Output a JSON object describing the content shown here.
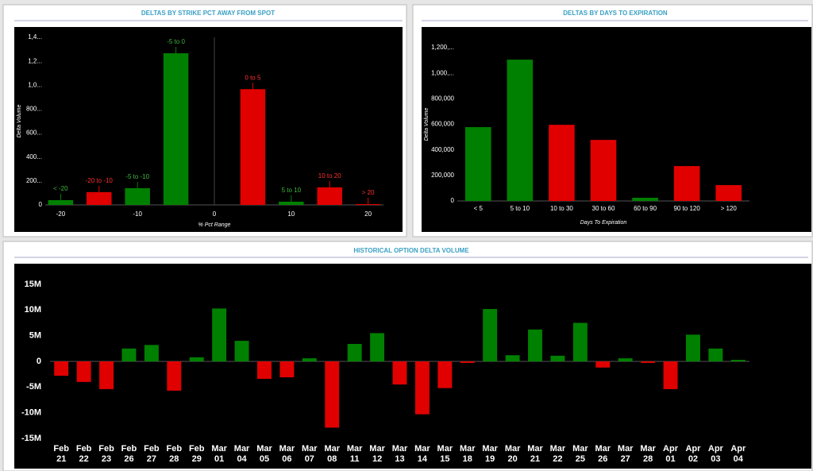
{
  "chart_data": [
    {
      "type": "bar",
      "title": "DELTAS BY STRIKE PCT AWAY FROM SPOT",
      "x": [
        -20,
        -15,
        -10,
        -5,
        5,
        10,
        15,
        20
      ],
      "bar_labels": [
        "< -20",
        "-20 to -10",
        "-5 to -10",
        "-5 to 0",
        "0 to 5",
        "5 to 10",
        "10 to 20",
        "> 20"
      ],
      "values": [
        40000,
        107000,
        140000,
        1267000,
        967000,
        27000,
        147000,
        7000
      ],
      "colors": [
        "#008000",
        "#e00000",
        "#008000",
        "#008000",
        "#e00000",
        "#008000",
        "#e00000",
        "#e00000"
      ],
      "xlim": [
        -22,
        22
      ],
      "xticks": [
        -20,
        -10,
        0,
        10,
        20
      ],
      "ylim": [
        0,
        1400000
      ],
      "yticks": [
        0,
        {
          "value": 200000,
          "label": "200..."
        },
        {
          "value": 400000,
          "label": "400..."
        },
        {
          "value": 600000,
          "label": "600..."
        },
        {
          "value": 800000,
          "label": "800..."
        },
        {
          "value": 1000000,
          "label": "1,0..."
        },
        {
          "value": 1200000,
          "label": "1,2..."
        },
        {
          "value": 1400000,
          "label": "1,4..."
        }
      ],
      "xlabel": "% Pct Range",
      "ylabel": "Delta Volume"
    },
    {
      "type": "bar",
      "title": "DELTAS BY DAYS TO EXPIRATION",
      "categories": [
        "< 5",
        "5 to 10",
        "10 to 30",
        "30 to 60",
        "60 to 90",
        "90 to 120",
        "> 120"
      ],
      "values": [
        578000,
        1106000,
        596000,
        478000,
        25000,
        273000,
        124000
      ],
      "colors": [
        "#008000",
        "#008000",
        "#e00000",
        "#e00000",
        "#008000",
        "#e00000",
        "#e00000"
      ],
      "ylim": [
        0,
        1200000
      ],
      "yticks": [
        0,
        {
          "value": 200000,
          "label": "200,000"
        },
        {
          "value": 400000,
          "label": "400,000"
        },
        {
          "value": 600000,
          "label": "600,000"
        },
        {
          "value": 800000,
          "label": "800,000"
        },
        {
          "value": 1000000,
          "label": "1,000,..."
        },
        {
          "value": 1200000,
          "label": "1,200,..."
        }
      ],
      "xlabel": "Days To Expiration",
      "ylabel": "Delta Volume"
    },
    {
      "type": "bar",
      "title": "HISTORICAL OPTION DELTA VOLUME",
      "categories": [
        [
          "Feb",
          "21"
        ],
        [
          "Feb",
          "22"
        ],
        [
          "Feb",
          "23"
        ],
        [
          "Feb",
          "26"
        ],
        [
          "Feb",
          "27"
        ],
        [
          "Feb",
          "28"
        ],
        [
          "Feb",
          "29"
        ],
        [
          "Mar",
          "01"
        ],
        [
          "Mar",
          "04"
        ],
        [
          "Mar",
          "05"
        ],
        [
          "Mar",
          "06"
        ],
        [
          "Mar",
          "07"
        ],
        [
          "Mar",
          "08"
        ],
        [
          "Mar",
          "11"
        ],
        [
          "Mar",
          "12"
        ],
        [
          "Mar",
          "13"
        ],
        [
          "Mar",
          "14"
        ],
        [
          "Mar",
          "15"
        ],
        [
          "Mar",
          "18"
        ],
        [
          "Mar",
          "19"
        ],
        [
          "Mar",
          "20"
        ],
        [
          "Mar",
          "21"
        ],
        [
          "Mar",
          "22"
        ],
        [
          "Mar",
          "25"
        ],
        [
          "Mar",
          "26"
        ],
        [
          "Mar",
          "27"
        ],
        [
          "Mar",
          "28"
        ],
        [
          "Apr",
          "01"
        ],
        [
          "Apr",
          "02"
        ],
        [
          "Apr",
          "03"
        ],
        [
          "Apr",
          "04"
        ]
      ],
      "values": [
        -2800000,
        -4000000,
        -5400000,
        2500000,
        3200000,
        -5700000,
        800000,
        10300000,
        4000000,
        -3400000,
        -3100000,
        600000,
        -12900000,
        3400000,
        5500000,
        -4500000,
        -10300000,
        -5200000,
        -300000,
        10200000,
        1200000,
        6200000,
        1100000,
        7500000,
        -1200000,
        600000,
        -300000,
        -5400000,
        5200000,
        2500000,
        300000
      ],
      "positive_color": "#008000",
      "negative_color": "#e00000",
      "ylim": [
        -15000000,
        15000000
      ],
      "yticks": [
        {
          "value": -15000000,
          "label": "-15M"
        },
        {
          "value": -10000000,
          "label": "-10M"
        },
        {
          "value": -5000000,
          "label": "-5M"
        },
        0,
        {
          "value": 5000000,
          "label": "5M"
        },
        {
          "value": 10000000,
          "label": "10M"
        },
        {
          "value": 15000000,
          "label": "15M"
        }
      ]
    }
  ]
}
